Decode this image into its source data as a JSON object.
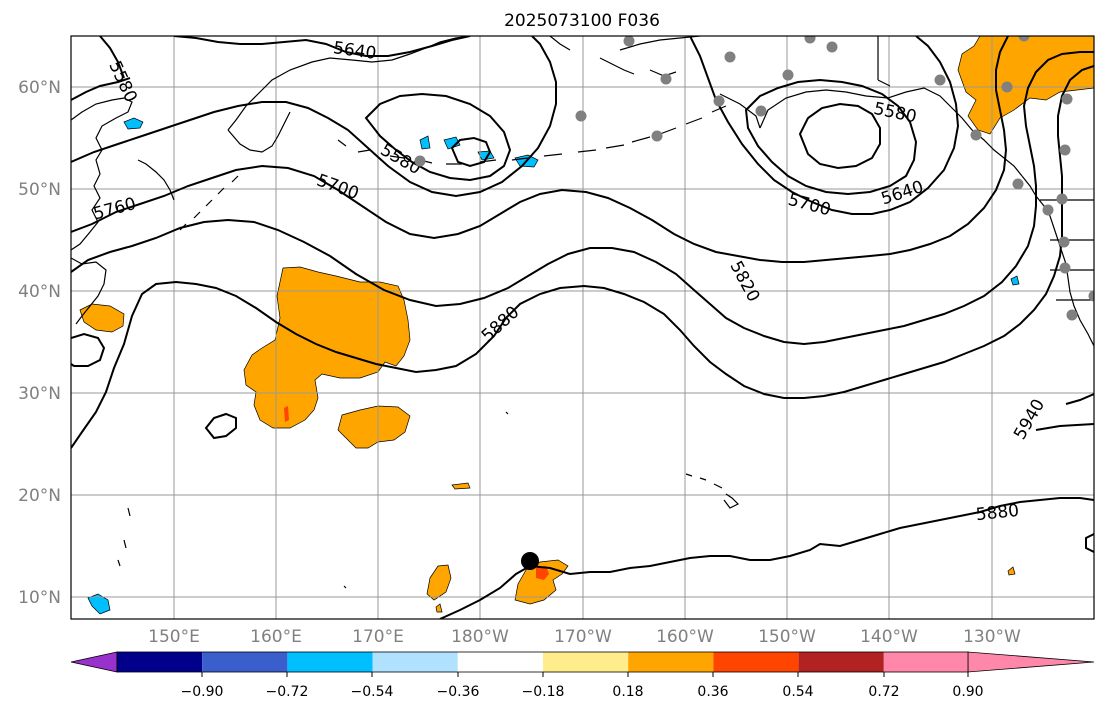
{
  "title": "2025073100 F036",
  "map": {
    "lat_range": [
      8,
      65
    ],
    "lon_range_east": [
      140,
      240
    ],
    "lat_gridlines": [
      10,
      20,
      30,
      40,
      50,
      60
    ],
    "lat_labels": [
      "10°N",
      "20°N",
      "30°N",
      "40°N",
      "50°N",
      "60°N"
    ],
    "lon_gridlines_east": [
      150,
      160,
      170,
      180,
      190,
      200,
      210,
      220,
      230
    ],
    "lon_labels": [
      "150°E",
      "160°E",
      "170°E",
      "180°W",
      "170°W",
      "160°W",
      "150°W",
      "140°W",
      "130°W"
    ]
  },
  "contours": {
    "labels": [
      "5580",
      "5640",
      "5580",
      "5700",
      "5760",
      "5820",
      "5880",
      "5580",
      "5640",
      "5700",
      "5940",
      "5880"
    ]
  },
  "colorbar": {
    "ticks": [
      "−0.90",
      "−0.72",
      "−0.54",
      "−0.36",
      "−0.18",
      "0.18",
      "0.36",
      "0.54",
      "0.72",
      "0.90"
    ],
    "colors": [
      "#9932cc",
      "#00008b",
      "#3a5fcd",
      "#00bfff",
      "#b0e2ff",
      "#ffffff",
      "#ffec8b",
      "#ffa500",
      "#ff4500",
      "#b22222",
      "#ff88aa"
    ]
  },
  "colors": {
    "positive_fill": "#ffa500",
    "negative_fill": "#00bfff",
    "station_marker": "#808080",
    "storm_marker": "#000000"
  }
}
